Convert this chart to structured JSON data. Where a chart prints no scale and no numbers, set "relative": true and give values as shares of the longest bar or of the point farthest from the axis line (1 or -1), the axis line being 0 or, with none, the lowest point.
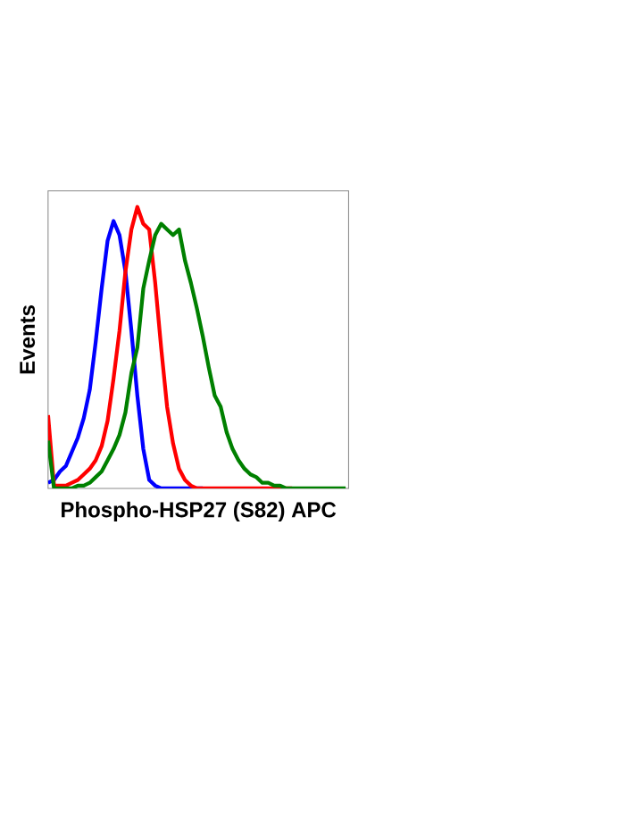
{
  "chart_data": {
    "type": "line",
    "xlabel": "Phospho-HSP27 (S82) APC",
    "ylabel": "Events",
    "relative": true,
    "marker": "none",
    "line_style": "solid",
    "categories": [
      null,
      null,
      null,
      null,
      null,
      null,
      null,
      null,
      null,
      null,
      null,
      null,
      null,
      null,
      null,
      null,
      null,
      null,
      null,
      null,
      null,
      null,
      null,
      null,
      null,
      null,
      null,
      null,
      null,
      null,
      null,
      null,
      null,
      null,
      null,
      null,
      null,
      null,
      null,
      null,
      null,
      null,
      null,
      null,
      null,
      null,
      null,
      null,
      null,
      null,
      null
    ],
    "series": [
      {
        "color": "#0000ff",
        "values": [
          0.02,
          0.03,
          0.06,
          0.08,
          0.13,
          0.18,
          0.25,
          0.35,
          0.52,
          0.71,
          0.88,
          0.95,
          0.9,
          0.77,
          0.56,
          0.33,
          0.14,
          0.03,
          0.01,
          0,
          0,
          0,
          0,
          0,
          0,
          0,
          0,
          null,
          null,
          null,
          null,
          null,
          null,
          null,
          null,
          null,
          null,
          null,
          null,
          null,
          null,
          null,
          null,
          null,
          null,
          null,
          null,
          null,
          null,
          null,
          null
        ]
      },
      {
        "color": "#ff0000",
        "values": [
          0.26,
          0.01,
          0.01,
          0.01,
          0.02,
          0.03,
          0.05,
          0.07,
          0.1,
          0.15,
          0.24,
          0.39,
          0.56,
          0.77,
          0.92,
          1.0,
          0.94,
          0.92,
          0.73,
          0.5,
          0.29,
          0.16,
          0.07,
          0.03,
          0.01,
          0,
          0,
          0,
          0,
          0,
          0,
          0,
          0,
          0,
          0,
          0,
          0,
          0,
          0,
          0,
          0,
          0,
          null,
          null,
          null,
          null,
          null,
          null,
          null,
          null,
          null
        ]
      },
      {
        "color": "#008000",
        "values": [
          0.17,
          0,
          0,
          0,
          0,
          0.01,
          0.01,
          0.02,
          0.04,
          0.06,
          0.1,
          0.14,
          0.19,
          0.27,
          0.41,
          0.5,
          0.71,
          0.81,
          0.9,
          0.94,
          0.92,
          0.9,
          0.92,
          0.81,
          0.73,
          0.64,
          0.54,
          0.43,
          0.33,
          0.29,
          0.2,
          0.14,
          0.1,
          0.07,
          0.05,
          0.04,
          0.02,
          0.02,
          0.01,
          0.01,
          0,
          0,
          0,
          0,
          0,
          0,
          0,
          0,
          0,
          0,
          0
        ]
      }
    ]
  }
}
